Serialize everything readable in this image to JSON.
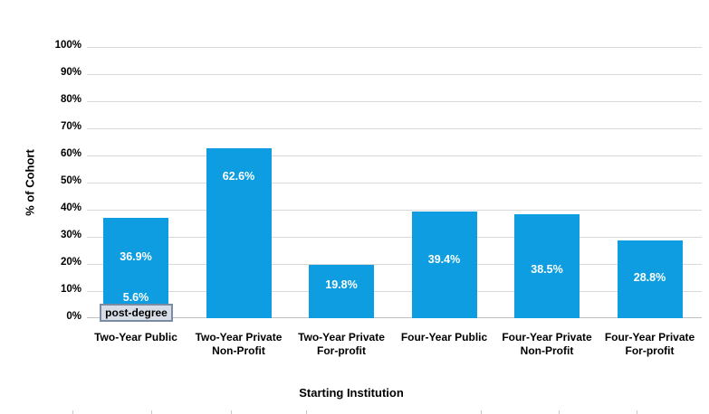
{
  "chart_data": {
    "type": "bar",
    "title": "",
    "xlabel": "Starting Institution",
    "ylabel": "% of Cohort",
    "categories": [
      "Two-Year Public",
      "Two-Year Private Non-Profit",
      "Two-Year Private For-profit",
      "Four-Year Public",
      "Four-Year Private Non-Profit",
      "Four-Year Private For-profit"
    ],
    "categories_display": [
      [
        "Two-Year Public"
      ],
      [
        "Two-Year Private",
        "Non-Profit"
      ],
      [
        "Two-Year Private",
        "For-profit"
      ],
      [
        "Four-Year Public"
      ],
      [
        "Four-Year Private",
        "Non-Profit"
      ],
      [
        "Four-Year Private",
        "For-profit"
      ]
    ],
    "values": [
      36.9,
      62.6,
      19.8,
      39.4,
      38.5,
      28.8
    ],
    "value_labels": [
      "36.9%",
      "62.6%",
      "19.8%",
      "39.4%",
      "38.5%",
      "28.8%"
    ],
    "annotation": {
      "category": "Two-Year Public",
      "value": 5.6,
      "value_label": "5.6%",
      "series_label": "post-degree"
    },
    "ylim": [
      0,
      100
    ],
    "ytick_step": 10,
    "yticks": [
      "0%",
      "10%",
      "20%",
      "30%",
      "40%",
      "50%",
      "60%",
      "70%",
      "80%",
      "90%",
      "100%"
    ],
    "grid": true,
    "legend": false,
    "bar_color": "#0d9de0",
    "value_label_color": "#ffffff",
    "gridline_color": "#d9d9d9",
    "axis_line_color": "#bfbfbf",
    "annotation_box_fill": "#d8dee8",
    "annotation_box_border": "#7a8ba3"
  }
}
